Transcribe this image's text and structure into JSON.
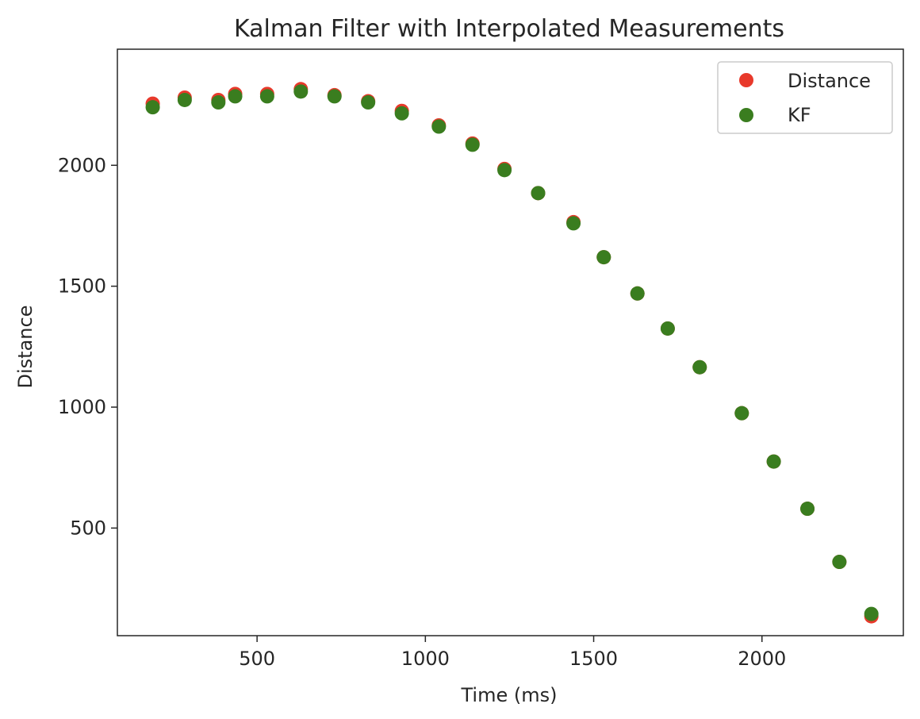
{
  "chart_data": {
    "type": "scatter",
    "title": "Kalman Filter with Interpolated Measurements",
    "xlabel": "Time (ms)",
    "ylabel": "Distance",
    "xlim": [
      85,
      2420
    ],
    "ylim": [
      55,
      2480
    ],
    "xticks": [
      500,
      1000,
      1500,
      2000
    ],
    "yticks": [
      500,
      1000,
      1500,
      2000
    ],
    "xtick_labels": [
      "500",
      "1000",
      "1500",
      "2000"
    ],
    "ytick_labels": [
      "500",
      "1000",
      "1500",
      "2000"
    ],
    "grid": false,
    "legend_position": "top-right",
    "series": [
      {
        "name": "Distance",
        "color": "#e8392b",
        "x": [
          190,
          285,
          385,
          435,
          530,
          630,
          730,
          830,
          930,
          1040,
          1140,
          1235,
          1335,
          1440,
          1530,
          1630,
          1720,
          1815,
          1940,
          2035,
          2135,
          2230,
          2325
        ],
        "y": [
          2255,
          2280,
          2270,
          2295,
          2295,
          2315,
          2290,
          2265,
          2225,
          2165,
          2090,
          1985,
          1885,
          1765,
          1620,
          1470,
          1325,
          1165,
          975,
          775,
          580,
          360,
          135
        ]
      },
      {
        "name": "KF",
        "color": "#3a7d1f",
        "x": [
          190,
          285,
          385,
          435,
          530,
          630,
          730,
          830,
          930,
          1040,
          1140,
          1235,
          1335,
          1440,
          1530,
          1630,
          1720,
          1815,
          1940,
          2035,
          2135,
          2230,
          2325
        ],
        "y": [
          2240,
          2270,
          2260,
          2285,
          2285,
          2305,
          2285,
          2260,
          2215,
          2160,
          2085,
          1980,
          1885,
          1760,
          1620,
          1470,
          1325,
          1165,
          975,
          775,
          580,
          360,
          145
        ]
      }
    ]
  }
}
